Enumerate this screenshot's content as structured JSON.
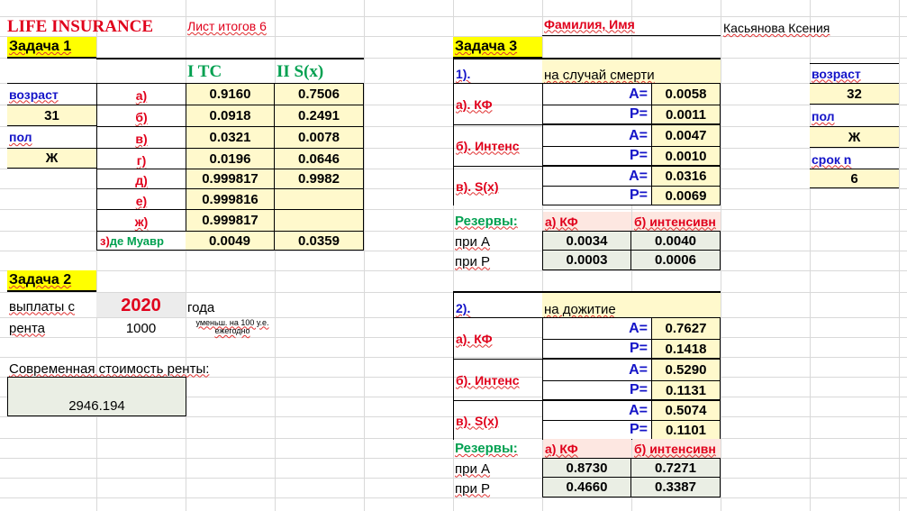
{
  "header": {
    "title": "LIFE INSURANCE",
    "sheet": "Лист итогов 6"
  },
  "student": {
    "label": "Фамилия, Имя",
    "name": "Касьянова Ксения"
  },
  "task1": {
    "title": "Задача 1",
    "col1": "I  TC",
    "col2": "II S(x)",
    "age_label": "возраст",
    "age": "31",
    "sex_label": "пол",
    "sex": "Ж",
    "rows": [
      {
        "label": "а)",
        "v1": "0.9160",
        "v2": "0.7506"
      },
      {
        "label": "б)",
        "v1": "0.0918",
        "v2": "0.2491"
      },
      {
        "label": "в)",
        "v1": "0.0321",
        "v2": "0.0078"
      },
      {
        "label": "г)",
        "v1": "0.0196",
        "v2": "0.0646"
      },
      {
        "label": "д)",
        "v1": "0.999817",
        "v2": "0.9982"
      },
      {
        "label": "е)",
        "v1": "0.999816",
        "v2": ""
      },
      {
        "label": "ж)",
        "v1": "0.999817",
        "v2": ""
      }
    ],
    "row_z": {
      "prefix": "з)",
      "label": " де Муавр",
      "v1": "0.0049",
      "v2": "0.0359"
    }
  },
  "task2": {
    "title": "Задача 2",
    "payments_label": "выплаты  с",
    "year": "2020",
    "year_suffix": "года",
    "rent_label": "рента",
    "rent": "1000",
    "note": "уменьш. на 100 у.е. ежегодно",
    "pv_label": "Современная стоимость ренты:",
    "pv": "2946.194"
  },
  "task3": {
    "title": "Задача 3",
    "side": {
      "age_label": "возраст",
      "age": "32",
      "sex_label": "пол",
      "sex": "Ж",
      "term_label": "срок n",
      "term": "6"
    },
    "part1": {
      "num": "1).",
      "desc": "на случай смерти",
      "rows": [
        {
          "label": "а). КФ",
          "A": "0.0058",
          "P": "0.0011"
        },
        {
          "label": "б). Интенс",
          "A": "0.0047",
          "P": "0.0010"
        },
        {
          "label": "в). S(x)",
          "A": "0.0316",
          "P": "0.0069"
        }
      ],
      "reserves": {
        "label": "Резервы:",
        "kf": "а) КФ",
        "int": "б) интенсивн",
        "atA": "при А",
        "atP": "при Р",
        "A1": "0.0034",
        "A2": "0.0040",
        "P1": "0.0003",
        "P2": "0.0006"
      }
    },
    "part2": {
      "num": "2).",
      "desc": "на дожитие",
      "rows": [
        {
          "label": "а). КФ",
          "A": "0.7627",
          "P": "0.1418"
        },
        {
          "label": "б). Интенс",
          "A": "0.5290",
          "P": "0.1131"
        },
        {
          "label": "в). S(x)",
          "A": "0.5074",
          "P": "0.1101"
        }
      ],
      "reserves": {
        "label": "Резервы:",
        "kf": "а) КФ",
        "int": "б) интенсивн",
        "atA": "при А",
        "atP": "при Р",
        "A1": "0.8730",
        "A2": "0.7271",
        "P1": "0.4660",
        "P2": "0.3387"
      }
    },
    "A_sym": "А=",
    "P_sym": "Р="
  }
}
